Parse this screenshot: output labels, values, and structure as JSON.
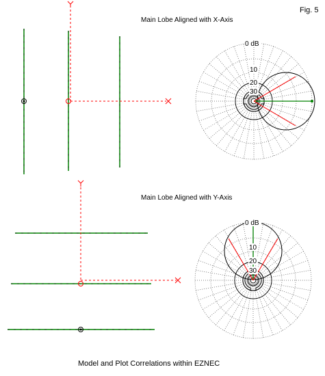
{
  "figure_label": "Fig. 5",
  "caption": "Model and Plot Correlations within EZNEC",
  "top_panel": {
    "title": "Main Lobe Aligned with X-Axis",
    "axis_y_label": "Y",
    "axis_x_label": "X",
    "ring_labels": [
      "0 dB",
      "10",
      "20",
      "30"
    ]
  },
  "bottom_panel": {
    "title": "Main Lobe Aligned with Y-Axis",
    "axis_y_label": "Y",
    "axis_x_label": "X",
    "ring_labels": [
      "0 dB",
      "10",
      "20",
      "30"
    ]
  },
  "colors": {
    "element": "#008000",
    "axis": "#ff0000",
    "plot_line": "#000000",
    "grid": "#555555"
  }
}
